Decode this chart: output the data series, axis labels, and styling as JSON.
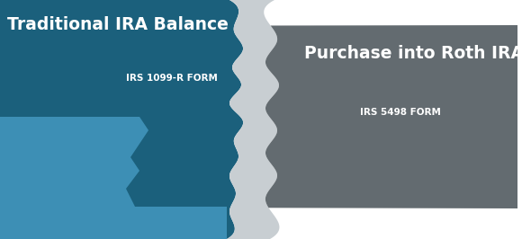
{
  "title_left": "Traditional IRA Balance",
  "subtitle_left": "IRS 1099-R FORM",
  "title_right": "Purchase into Roth IRA",
  "subtitle_right": "IRS 5498 FORM",
  "color_left_dark": "#1b607c",
  "color_left_light": "#3d8fb5",
  "color_right": "#636b70",
  "color_connector": "#c8ced2",
  "color_bg": "#ffffff",
  "color_text": "#ffffff",
  "fig_width": 5.8,
  "fig_height": 2.66,
  "dpi": 100
}
